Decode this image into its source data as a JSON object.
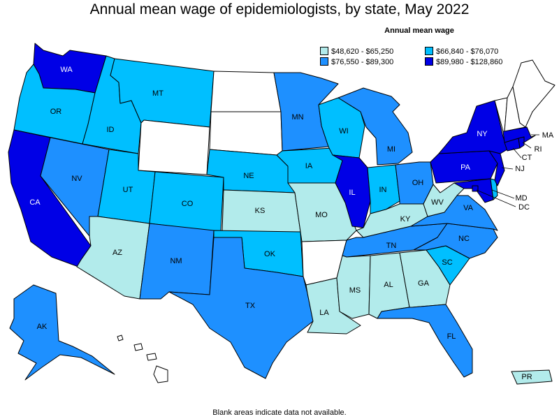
{
  "title": "Annual mean wage of epidemiologists, by state, May 2022",
  "legend": {
    "title": "Annual mean wage",
    "bins": [
      {
        "label": "$48,620 - $65,250",
        "color": "#b2ebeb"
      },
      {
        "label": "$66,840 - $76,070",
        "color": "#00bfff"
      },
      {
        "label": "$76,550 - $89,300",
        "color": "#1e90ff"
      },
      {
        "label": "$89,980 - $128,860",
        "color": "#0000e6"
      }
    ]
  },
  "no_data_color": "#ffffff",
  "footnote": "Blank areas indicate data not available.",
  "states": {
    "WA": {
      "label": "WA",
      "bin": 3
    },
    "OR": {
      "label": "OR",
      "bin": 1
    },
    "CA": {
      "label": "CA",
      "bin": 3
    },
    "NV": {
      "label": "NV",
      "bin": 2
    },
    "ID": {
      "label": "ID",
      "bin": 1
    },
    "MT": {
      "label": "MT",
      "bin": 1
    },
    "WY": {
      "label": "",
      "bin": null
    },
    "UT": {
      "label": "UT",
      "bin": 1
    },
    "AZ": {
      "label": "AZ",
      "bin": 0
    },
    "CO": {
      "label": "CO",
      "bin": 1
    },
    "NM": {
      "label": "NM",
      "bin": 2
    },
    "ND": {
      "label": "",
      "bin": null
    },
    "SD": {
      "label": "",
      "bin": null
    },
    "NE": {
      "label": "NE",
      "bin": 1
    },
    "KS": {
      "label": "KS",
      "bin": 0
    },
    "OK": {
      "label": "OK",
      "bin": 1
    },
    "TX": {
      "label": "TX",
      "bin": 2
    },
    "MN": {
      "label": "MN",
      "bin": 2
    },
    "IA": {
      "label": "IA",
      "bin": 1
    },
    "MO": {
      "label": "MO",
      "bin": 0
    },
    "AR": {
      "label": "",
      "bin": null
    },
    "LA": {
      "label": "LA",
      "bin": 0
    },
    "WI": {
      "label": "WI",
      "bin": 1
    },
    "IL": {
      "label": "IL",
      "bin": 3
    },
    "MI": {
      "label": "MI",
      "bin": 2
    },
    "IN": {
      "label": "IN",
      "bin": 1
    },
    "OH": {
      "label": "OH",
      "bin": 2
    },
    "KY": {
      "label": "KY",
      "bin": 0
    },
    "TN": {
      "label": "TN",
      "bin": 2
    },
    "MS": {
      "label": "MS",
      "bin": 0
    },
    "AL": {
      "label": "AL",
      "bin": 0
    },
    "GA": {
      "label": "GA",
      "bin": 0
    },
    "FL": {
      "label": "FL",
      "bin": 2
    },
    "SC": {
      "label": "SC",
      "bin": 1
    },
    "NC": {
      "label": "NC",
      "bin": 2
    },
    "VA": {
      "label": "VA",
      "bin": 2
    },
    "WV": {
      "label": "WV",
      "bin": 0
    },
    "PA": {
      "label": "PA",
      "bin": 3
    },
    "NY": {
      "label": "NY",
      "bin": 3
    },
    "MD": {
      "label": "MD",
      "bin": 3
    },
    "DE": {
      "label": "",
      "bin": 1
    },
    "DC": {
      "label": "DC",
      "bin": 3
    },
    "NJ": {
      "label": "NJ",
      "bin": 3
    },
    "CT": {
      "label": "CT",
      "bin": 3
    },
    "RI": {
      "label": "RI",
      "bin": 3
    },
    "MA": {
      "label": "MA",
      "bin": 3
    },
    "VT": {
      "label": "",
      "bin": null
    },
    "NH": {
      "label": "",
      "bin": null
    },
    "ME": {
      "label": "",
      "bin": null
    },
    "AK": {
      "label": "AK",
      "bin": 2
    },
    "HI": {
      "label": "",
      "bin": null
    },
    "PR": {
      "label": "PR",
      "bin": 0
    }
  }
}
